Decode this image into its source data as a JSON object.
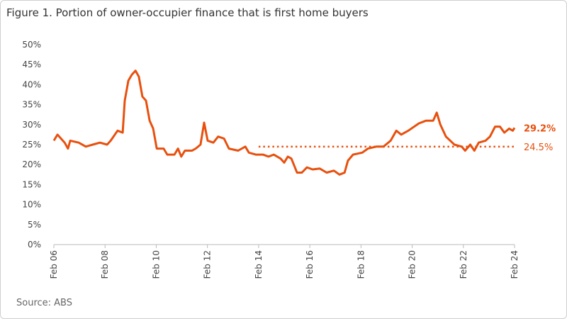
{
  "chart_data": {
    "type": "line",
    "title": "Figure 1. Portion of owner-occupier finance that is first home buyers",
    "source": "Source: ABS",
    "ylim": [
      0,
      50
    ],
    "yticks": [
      {
        "value": 0,
        "label": "0%"
      },
      {
        "value": 5,
        "label": "5%"
      },
      {
        "value": 10,
        "label": "10%"
      },
      {
        "value": 15,
        "label": "15%"
      },
      {
        "value": 20,
        "label": "20%"
      },
      {
        "value": 25,
        "label": "25%"
      },
      {
        "value": 30,
        "label": "30%"
      },
      {
        "value": 35,
        "label": "35%"
      },
      {
        "value": 40,
        "label": "40%"
      },
      {
        "value": 45,
        "label": "45%"
      },
      {
        "value": 50,
        "label": "50%"
      }
    ],
    "xlim": [
      2006.08,
      2024.08
    ],
    "xticks": [
      {
        "value": 2006.08,
        "label": "Feb 06"
      },
      {
        "value": 2008.08,
        "label": "Feb 08"
      },
      {
        "value": 2010.08,
        "label": "Feb 10"
      },
      {
        "value": 2012.08,
        "label": "Feb 12"
      },
      {
        "value": 2014.08,
        "label": "Feb 14"
      },
      {
        "value": 2016.08,
        "label": "Feb 16"
      },
      {
        "value": 2018.08,
        "label": "Feb 18"
      },
      {
        "value": 2020.08,
        "label": "Feb 20"
      },
      {
        "value": 2022.08,
        "label": "Feb 22"
      },
      {
        "value": 2024.08,
        "label": "Feb 24"
      }
    ],
    "x": [
      2006.08,
      2006.22,
      2006.5,
      2006.63,
      2006.72,
      2007.05,
      2007.33,
      2007.6,
      2007.88,
      2008.16,
      2008.3,
      2008.57,
      2008.77,
      2008.85,
      2008.99,
      2009.13,
      2009.27,
      2009.4,
      2009.54,
      2009.68,
      2009.82,
      2009.96,
      2010.1,
      2010.37,
      2010.51,
      2010.79,
      2010.93,
      2011.06,
      2011.2,
      2011.48,
      2011.62,
      2011.81,
      2011.95,
      2012.09,
      2012.31,
      2012.5,
      2012.73,
      2012.92,
      2013.28,
      2013.56,
      2013.7,
      2013.97,
      2014.25,
      2014.47,
      2014.67,
      2014.94,
      2015.08,
      2015.22,
      2015.36,
      2015.58,
      2015.77,
      2015.97,
      2016.19,
      2016.47,
      2016.74,
      2017.02,
      2017.24,
      2017.44,
      2017.57,
      2017.77,
      2018.13,
      2018.35,
      2018.68,
      2018.96,
      2019.24,
      2019.46,
      2019.65,
      2019.93,
      2020.34,
      2020.62,
      2020.9,
      2021.04,
      2021.18,
      2021.4,
      2021.73,
      2022.01,
      2022.15,
      2022.35,
      2022.51,
      2022.68,
      2022.95,
      2023.12,
      2023.32,
      2023.51,
      2023.68,
      2023.87,
      2024.01,
      2024.08
    ],
    "series": [
      {
        "name": "First home buyers share",
        "color": "#e8500e",
        "values": [
          26,
          27.5,
          25.5,
          24,
          26,
          25.5,
          24.5,
          25,
          25.5,
          25,
          26,
          28.5,
          28,
          36,
          41,
          42.5,
          43.5,
          42,
          37,
          36,
          31,
          29,
          24,
          24,
          22.5,
          22.5,
          24,
          22,
          23.5,
          23.5,
          24,
          25,
          30.5,
          26,
          25.5,
          27,
          26.5,
          24,
          23.5,
          24.5,
          23,
          22.5,
          22.5,
          22,
          22.5,
          21.5,
          20.5,
          22,
          21.5,
          18,
          18,
          19.3,
          18.8,
          19,
          18,
          18.5,
          17.5,
          18,
          21,
          22.5,
          23,
          24,
          24.5,
          24.5,
          26,
          28.5,
          27.5,
          28.5,
          30.3,
          31,
          31,
          33,
          30,
          27,
          25,
          24.5,
          23.5,
          25,
          23.5,
          25.5,
          26,
          27,
          29.5,
          29.5,
          28,
          29,
          28.5,
          29.2
        ]
      }
    ],
    "reference_line": {
      "y": 24.5,
      "x_start": 2014.08,
      "label": "24.5%",
      "color": "#e8500e"
    },
    "end_label": {
      "y": 29.2,
      "label": "29.2%"
    },
    "grid": false
  }
}
